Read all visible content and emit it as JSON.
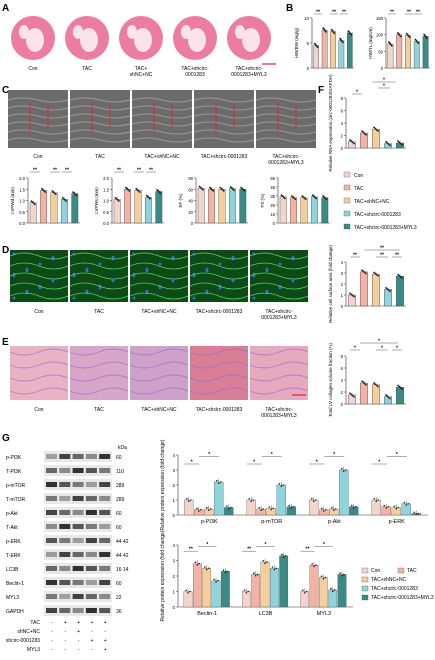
{
  "panels": {
    "A": "A",
    "B": "B",
    "C": "C",
    "D": "D",
    "E": "E",
    "F": "F",
    "G": "G"
  },
  "groups": [
    "Con",
    "TAC",
    "TAC+shNC+NC",
    "TAC+shcirc-0001283",
    "TAC+shcirc-0001283+MYL3"
  ],
  "groups_wrapped": [
    [
      "Con"
    ],
    [
      "TAC"
    ],
    [
      "TAC+",
      "shNC+NC"
    ],
    [
      "TAC+shcirc-",
      "0001283"
    ],
    [
      "TAC+shcirc-",
      "0001283+MYL3"
    ]
  ],
  "groups_wrapped2": [
    [
      "Con"
    ],
    [
      "TAC"
    ],
    [
      "TAC+shNC+NC"
    ],
    [
      "TAC+shcirc-0001283"
    ],
    [
      "TAC+shcirc-",
      "0001283+MYL3"
    ]
  ],
  "colors": {
    "con": "#f2d4cd",
    "tac": "#f3b2a3",
    "nc": "#f6ce9b",
    "sh": "#8fd3dc",
    "myl3": "#3a8b86",
    "heart": "#e9668f",
    "echo": "#6b6b6b"
  },
  "legend": [
    "Con",
    "TAC",
    "TAC+shNC+NC",
    "TAC+shcirc-0001283",
    "TAC+shcirc-0001283+MYL3"
  ],
  "sig": {
    "two": "**",
    "one": "*"
  },
  "chart_data": [
    {
      "id": "B1",
      "type": "bar",
      "ylabel": "HW/BW (mg/g)",
      "ylim": [
        0,
        10
      ],
      "ticks": [
        "0",
        "5",
        "10"
      ],
      "categories": [
        "Con",
        "TAC",
        "TAC+shNC+NC",
        "TAC+shcirc-0001283",
        "TAC+shcirc-0001283+MYL3"
      ],
      "values": [
        4.5,
        7.6,
        7.3,
        5.5,
        7.0
      ]
    },
    {
      "id": "B2",
      "type": "bar",
      "ylabel": "HW/TL (mg/cm)",
      "ylim": [
        0,
        150
      ],
      "ticks": [
        "0",
        "50",
        "100",
        "150"
      ],
      "categories": [
        "Con",
        "TAC",
        "TAC+shNC+NC",
        "TAC+shcirc-0001283",
        "TAC+shcirc-0001283+MYL3"
      ],
      "values": [
        72,
        100,
        98,
        80,
        95
      ]
    },
    {
      "id": "C1",
      "type": "bar",
      "ylabel": "LVPWd (mm)",
      "ylim": [
        0,
        2.0
      ],
      "ticks": [
        "0.0",
        "0.5",
        "1.0",
        "1.5",
        "2.0"
      ],
      "categories": [
        "Con",
        "TAC",
        "TAC+shNC+NC",
        "TAC+shcirc-0001283",
        "TAC+shcirc-0001283+MYL3"
      ],
      "values": [
        0.9,
        1.45,
        1.35,
        1.05,
        1.3
      ]
    },
    {
      "id": "C2",
      "type": "bar",
      "ylabel": "LVPWs (mm)",
      "ylim": [
        0,
        2.0
      ],
      "ticks": [
        "0.0",
        "0.5",
        "1.0",
        "1.5",
        "2.0"
      ],
      "categories": [
        "Con",
        "TAC",
        "TAC+shNC+NC",
        "TAC+shcirc-0001283",
        "TAC+shcirc-0001283+MYL3"
      ],
      "values": [
        1.05,
        1.5,
        1.45,
        1.15,
        1.4
      ]
    },
    {
      "id": "C3",
      "type": "bar",
      "ylabel": "EF (%)",
      "ylim": [
        0,
        80
      ],
      "ticks": [
        "0",
        "20",
        "40",
        "60",
        "80"
      ],
      "categories": [
        "Con",
        "TAC",
        "TAC+shNC+NC",
        "TAC+shcirc-0001283",
        "TAC+shcirc-0001283+MYL3"
      ],
      "values": [
        62,
        60,
        60,
        61,
        60
      ]
    },
    {
      "id": "C4",
      "type": "bar",
      "ylabel": "FS (%)",
      "ylim": [
        0,
        55
      ],
      "ticks": [
        "0",
        "15",
        "25",
        "35",
        "45",
        "55"
      ],
      "categories": [
        "Con",
        "TAC",
        "TAC+shNC+NC",
        "TAC+shcirc-0001283",
        "TAC+shcirc-0001283+MYL3"
      ],
      "values": [
        32,
        31,
        31,
        32,
        31
      ]
    },
    {
      "id": "F",
      "type": "bar",
      "ylabel": "Relative RNA expression (circ-0001283/GAPDH)",
      "ylim": [
        0,
        8
      ],
      "ticks": [
        "0",
        "2",
        "4",
        "6",
        "8"
      ],
      "categories": [
        "Con",
        "TAC",
        "TAC+shNC+NC",
        "TAC+shcirc-0001283",
        "TAC+shcirc-0001283+MYL3"
      ],
      "values": [
        1.0,
        2.4,
        3.0,
        0.7,
        0.8
      ]
    },
    {
      "id": "D",
      "type": "bar",
      "ylabel": "Relative cell surface area (fold change)",
      "ylim": [
        0,
        4
      ],
      "ticks": [
        "0",
        "1",
        "2",
        "3",
        "4"
      ],
      "categories": [
        "Con",
        "TAC",
        "TAC+shNC+NC",
        "TAC+shcirc-0001283",
        "TAC+shcirc-0001283+MYL3"
      ],
      "values": [
        1.0,
        3.1,
        2.9,
        1.5,
        2.7
      ]
    },
    {
      "id": "E",
      "type": "bar",
      "ylabel": "Total LV collagen volume fraction (%)",
      "ylim": [
        0,
        8
      ],
      "ticks": [
        "0",
        "2",
        "4",
        "6",
        "8"
      ],
      "categories": [
        "Con",
        "TAC",
        "TAC+shNC+NC",
        "TAC+shcirc-0001283",
        "TAC+shcirc-0001283+MYL3"
      ],
      "values": [
        1.5,
        3.5,
        3.2,
        1.2,
        2.8
      ]
    },
    {
      "id": "G1",
      "type": "bar",
      "ylabel": "Relative protein expression (fold change)",
      "ylim": [
        0,
        4
      ],
      "ticks": [
        "0",
        "1",
        "2",
        "3",
        "4"
      ],
      "categories": [
        "p-PI3K",
        "p-mTOR",
        "p-Akt",
        "p-ERK"
      ],
      "series": [
        {
          "name": "Con",
          "values": [
            1.0,
            1.0,
            1.0,
            1.0
          ]
        },
        {
          "name": "TAC",
          "values": [
            0.35,
            0.4,
            0.35,
            0.55
          ]
        },
        {
          "name": "TAC+shNC+NC",
          "values": [
            0.4,
            0.45,
            0.4,
            0.5
          ]
        },
        {
          "name": "TAC+shcirc-0001283",
          "values": [
            2.2,
            2.0,
            3.0,
            0.75
          ]
        },
        {
          "name": "TAC+shcirc-0001283+MYL3",
          "values": [
            0.5,
            0.55,
            0.55,
            0.1
          ]
        }
      ]
    },
    {
      "id": "G2",
      "type": "bar",
      "ylabel": "Relative protein expression (fold change)",
      "ylim": [
        0,
        4
      ],
      "ticks": [
        "0",
        "1",
        "2",
        "3",
        "4"
      ],
      "categories": [
        "Beclin-1",
        "LC3B",
        "MYL3"
      ],
      "series": [
        {
          "name": "Con",
          "values": [
            1.0,
            1.0,
            1.0
          ]
        },
        {
          "name": "TAC",
          "values": [
            2.8,
            2.1,
            2.7
          ]
        },
        {
          "name": "TAC+shNC+NC",
          "values": [
            2.5,
            2.9,
            1.9
          ]
        },
        {
          "name": "TAC+shcirc-0001283",
          "values": [
            1.7,
            2.5,
            1.1
          ]
        },
        {
          "name": "TAC+shcirc-0001283+MYL3",
          "values": [
            2.3,
            3.3,
            2.1
          ]
        }
      ]
    }
  ],
  "blots": [
    {
      "label": "p-PI3K",
      "kda": "60"
    },
    {
      "label": "T-PI3K",
      "kda": "110"
    },
    {
      "label": "p-mTOR",
      "kda": "289"
    },
    {
      "label": "T-mTOR",
      "kda": "289"
    },
    {
      "label": "p-Akt",
      "kda": "60"
    },
    {
      "label": "T-Akt",
      "kda": "60"
    },
    {
      "label": "p-ERK",
      "kda": "44 42"
    },
    {
      "label": "T-ERK",
      "kda": "44 42"
    },
    {
      "label": "LC3B",
      "kda": "16 14"
    },
    {
      "label": "Beclin-1",
      "kda": "60"
    },
    {
      "label": "MYL3",
      "kda": "22"
    },
    {
      "label": "GAPDH",
      "kda": "36"
    }
  ],
  "kda_header": "kDa",
  "treat_rows": [
    {
      "label": "TAC",
      "marks": [
        "-",
        "+",
        "+",
        "+",
        "+"
      ]
    },
    {
      "label": "shNC+NC",
      "marks": [
        "-",
        "-",
        "+",
        "-",
        "-"
      ]
    },
    {
      "label": "shcirc-0001283",
      "marks": [
        "-",
        "-",
        "-",
        "+",
        "+"
      ]
    },
    {
      "label": "MYL3",
      "marks": [
        "-",
        "-",
        "-",
        "-",
        "+"
      ]
    }
  ]
}
